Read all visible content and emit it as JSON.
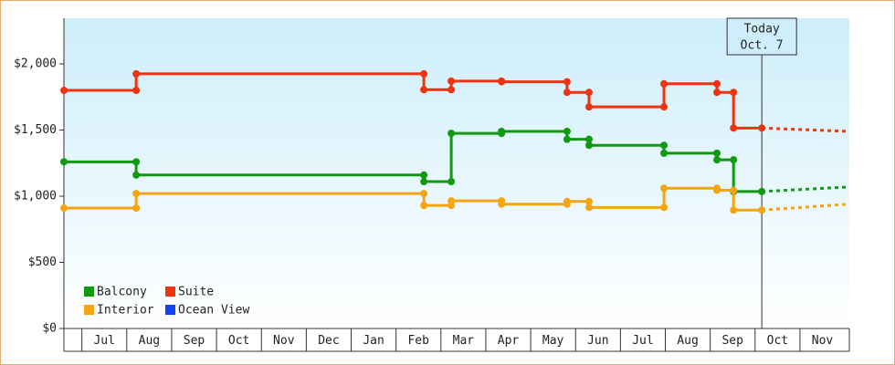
{
  "chart_data": {
    "type": "step-line",
    "xlim": [
      -0.4,
      17.1
    ],
    "ylim": [
      0,
      2345
    ],
    "yticks": [
      {
        "value": 0,
        "label": "$0"
      },
      {
        "value": 500,
        "label": "$500"
      },
      {
        "value": 1000,
        "label": "$1,000"
      },
      {
        "value": 1500,
        "label": "$1,500"
      },
      {
        "value": 2000,
        "label": "$2,000"
      }
    ],
    "xticks": [
      {
        "value": 0.5,
        "label": "Jul"
      },
      {
        "value": 1.5,
        "label": "Aug"
      },
      {
        "value": 2.5,
        "label": "Sep"
      },
      {
        "value": 3.5,
        "label": "Oct"
      },
      {
        "value": 4.5,
        "label": "Nov"
      },
      {
        "value": 5.5,
        "label": "Dec"
      },
      {
        "value": 6.5,
        "label": "Jan"
      },
      {
        "value": 7.5,
        "label": "Feb"
      },
      {
        "value": 8.5,
        "label": "Mar"
      },
      {
        "value": 9.5,
        "label": "Apr"
      },
      {
        "value": 10.5,
        "label": "May"
      },
      {
        "value": 11.5,
        "label": "Jun"
      },
      {
        "value": 12.5,
        "label": "Jul"
      },
      {
        "value": 13.5,
        "label": "Aug"
      },
      {
        "value": 14.5,
        "label": "Sep"
      },
      {
        "value": 15.5,
        "label": "Oct"
      },
      {
        "value": 16.5,
        "label": "Nov"
      }
    ],
    "today_x": 15.15,
    "today_label": "Today",
    "today_date": "Oct. 7",
    "series": [
      {
        "name": "Balcony",
        "color": "#119911",
        "x": [
          -0.4,
          1.21,
          1.21,
          7.62,
          7.62,
          8.23,
          8.23,
          9.35,
          9.35,
          10.81,
          10.81,
          11.3,
          11.3,
          12.97,
          12.97,
          14.15,
          14.15,
          14.52,
          14.52,
          15.15
        ],
        "values": [
          1260,
          1260,
          1160,
          1160,
          1110,
          1110,
          1475,
          1475,
          1490,
          1490,
          1430,
          1430,
          1385,
          1385,
          1325,
          1325,
          1275,
          1275,
          1035,
          1035
        ],
        "forecast_x": [
          15.15,
          17.1
        ],
        "forecast_values": [
          1035,
          1070
        ]
      },
      {
        "name": "Suite",
        "color": "#ee3311",
        "x": [
          -0.4,
          1.21,
          1.21,
          7.62,
          7.62,
          8.23,
          8.23,
          9.35,
          9.35,
          10.81,
          10.81,
          11.3,
          11.3,
          12.97,
          12.97,
          14.15,
          14.15,
          14.52,
          14.52,
          15.15
        ],
        "values": [
          1800,
          1800,
          1925,
          1925,
          1805,
          1805,
          1870,
          1870,
          1865,
          1865,
          1785,
          1785,
          1675,
          1675,
          1850,
          1850,
          1785,
          1785,
          1515,
          1515
        ],
        "forecast_x": [
          15.15,
          17.1
        ],
        "forecast_values": [
          1515,
          1490
        ]
      },
      {
        "name": "Interior",
        "color": "#f5a511",
        "x": [
          -0.4,
          1.21,
          1.21,
          7.62,
          7.62,
          8.23,
          8.23,
          9.35,
          9.35,
          10.81,
          10.81,
          11.3,
          11.3,
          12.97,
          12.97,
          14.15,
          14.15,
          14.52,
          14.52,
          15.15
        ],
        "values": [
          910,
          910,
          1020,
          1020,
          930,
          930,
          965,
          965,
          940,
          940,
          960,
          960,
          915,
          915,
          1060,
          1060,
          1045,
          1045,
          895,
          895
        ],
        "forecast_x": [
          15.15,
          17.1
        ],
        "forecast_values": [
          895,
          940
        ]
      },
      {
        "name": "Ocean View",
        "color": "#1144ee",
        "x": [],
        "values": [],
        "forecast_x": [],
        "forecast_values": []
      }
    ]
  }
}
